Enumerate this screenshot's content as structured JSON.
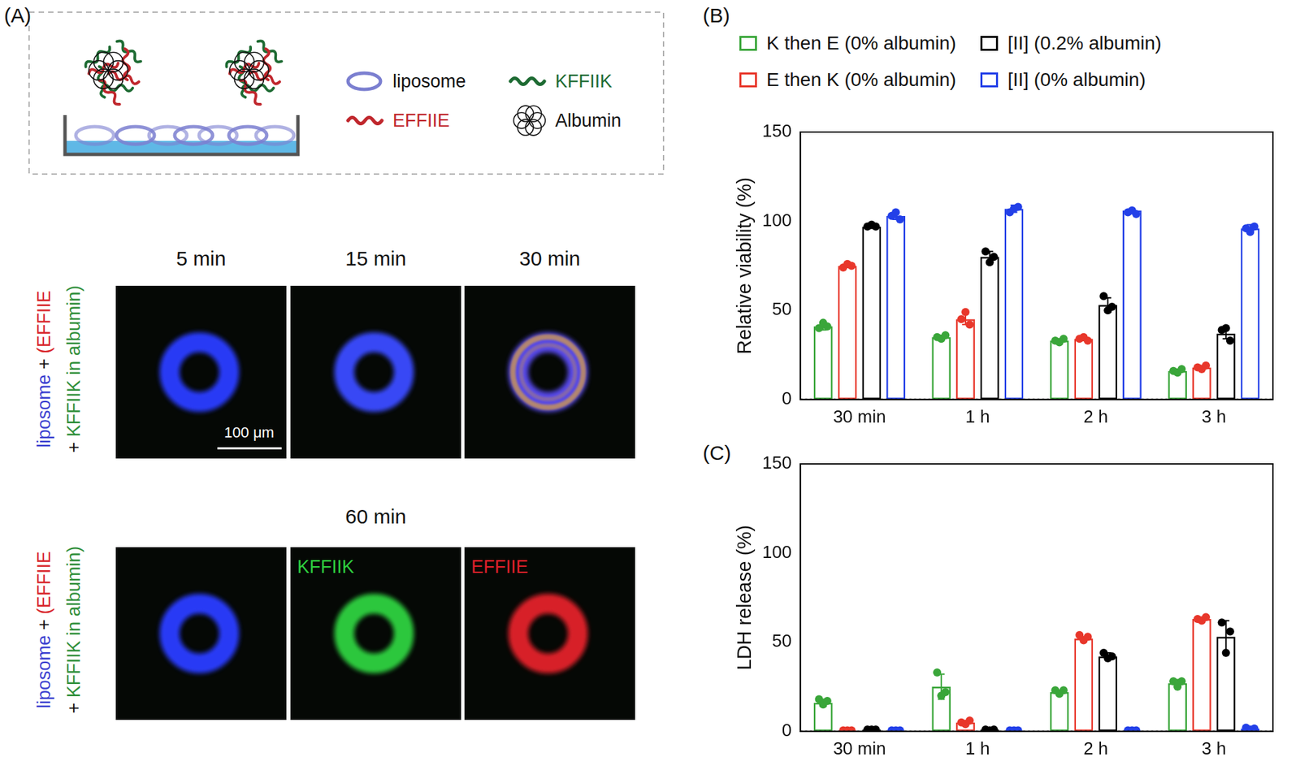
{
  "diagram": {
    "label": "(A)",
    "schematic": {
      "legend": [
        {
          "label": "liposome",
          "color": "#7b7fd0"
        },
        {
          "label": "KFFIIK",
          "color": "#1e6b33"
        },
        {
          "label": "EFFIIE",
          "color": "#c0272d"
        },
        {
          "label": "Albumin",
          "color": "#111111"
        }
      ]
    },
    "time_course": {
      "row_label": [
        [
          {
            "text": "liposome",
            "color": "#3a3fd0"
          },
          {
            "text": " + ",
            "color": "#111111"
          },
          {
            "text": "(EFFIIE",
            "color": "#d8262b"
          }
        ],
        [
          {
            "text": "+ ",
            "color": "#111111"
          },
          {
            "text": "KFFIIK in albumin)",
            "color": "#2f8f3a"
          }
        ]
      ],
      "images": [
        {
          "title": "5 min",
          "colors": [
            "#2b3cff"
          ]
        },
        {
          "title": "15 min",
          "colors": [
            "#3b4cff"
          ]
        },
        {
          "title": "30 min",
          "colors": [
            "#5a4cf0",
            "#d9a040"
          ]
        }
      ],
      "scale_bar": "100 μm"
    },
    "endpoint": {
      "row_label": [
        [
          {
            "text": "liposome",
            "color": "#3a3fd0"
          },
          {
            "text": " + ",
            "color": "#111111"
          },
          {
            "text": "(EFFIIE",
            "color": "#d8262b"
          }
        ],
        [
          {
            "text": "+ ",
            "color": "#111111"
          },
          {
            "text": "KFFIIK in albumin)",
            "color": "#2f8f3a"
          }
        ]
      ],
      "title": "60 min",
      "images": [
        {
          "colors": [
            "#2b3cff"
          ]
        },
        {
          "label": "KFFIIK",
          "colors": [
            "#2fcf3f"
          ]
        },
        {
          "label": "EFFIIE",
          "colors": [
            "#e0202a"
          ]
        }
      ]
    }
  },
  "chart_data": [
    {
      "label": "(B)",
      "type": "bar",
      "y_label": "Relative viability (%)",
      "categories": [
        "30 min",
        "1 h",
        "2 h",
        "3 h"
      ],
      "ylim": [
        0,
        150
      ],
      "yticks": [
        0,
        50,
        100,
        150
      ],
      "grid": false,
      "legend": "top",
      "series": [
        {
          "name": "K then E (0% albumin)",
          "color": "#3aa63a",
          "values": [
            41,
            35,
            33,
            16
          ],
          "errors": [
            2,
            1,
            1,
            1
          ],
          "points": [
            [
              40,
              43,
              41
            ],
            [
              35,
              34,
              36
            ],
            [
              33,
              32,
              34
            ],
            [
              16,
              15,
              17
            ]
          ]
        },
        {
          "name": "E then K (0% albumin)",
          "color": "#e8372b",
          "values": [
            75,
            45,
            34,
            18
          ],
          "errors": [
            1,
            3,
            1,
            1
          ],
          "points": [
            [
              74,
              76,
              75
            ],
            [
              45,
              49,
              42
            ],
            [
              34,
              35,
              33
            ],
            [
              18,
              17,
              19
            ]
          ]
        },
        {
          "name": "[II] (0.2% albumin)",
          "color": "#000000",
          "values": [
            97,
            80,
            53,
            37
          ],
          "errors": [
            1,
            3,
            4,
            3
          ],
          "points": [
            [
              97,
              98,
              97
            ],
            [
              83,
              77,
              80
            ],
            [
              58,
              50,
              52
            ],
            [
              39,
              40,
              33
            ]
          ]
        },
        {
          "name": "[II] (0% albumin)",
          "color": "#2340e8",
          "values": [
            103,
            107,
            106,
            96
          ],
          "errors": [
            2,
            2,
            1,
            2
          ],
          "points": [
            [
              103,
              105,
              101
            ],
            [
              105,
              107,
              108
            ],
            [
              105,
              106,
              104
            ],
            [
              96,
              94,
              97
            ]
          ]
        }
      ]
    },
    {
      "label": "(C)",
      "type": "bar",
      "y_label": "LDH release (%)",
      "categories": [
        "30 min",
        "1 h",
        "2 h",
        "3 h"
      ],
      "ylim": [
        0,
        150
      ],
      "yticks": [
        0,
        50,
        100,
        150
      ],
      "grid": false,
      "series": [
        {
          "name": "K then E (0% albumin)",
          "color": "#3aa63a",
          "values": [
            16,
            25,
            22,
            27
          ],
          "errors": [
            2,
            7,
            1,
            2
          ],
          "points": [
            [
              18,
              15,
              17
            ],
            [
              33,
              20,
              22
            ],
            [
              23,
              21,
              23
            ],
            [
              28,
              25,
              28
            ]
          ]
        },
        {
          "name": "E then K (0% albumin)",
          "color": "#e8372b",
          "values": [
            0.5,
            5,
            52,
            63
          ],
          "errors": [
            0,
            1,
            1,
            1
          ],
          "points": [
            [
              0.5,
              0.5,
              0.5
            ],
            [
              5,
              4,
              6
            ],
            [
              54,
              51,
              53
            ],
            [
              63,
              62,
              64
            ]
          ]
        },
        {
          "name": "[II] (0.2% albumin)",
          "color": "#000000",
          "values": [
            1,
            1,
            42,
            53
          ],
          "errors": [
            0,
            0,
            2,
            9
          ],
          "points": [
            [
              1,
              1,
              1
            ],
            [
              1,
              0.5,
              1
            ],
            [
              44,
              41,
              42
            ],
            [
              61,
              44,
              56
            ]
          ]
        },
        {
          "name": "[II] (0% albumin)",
          "color": "#2340e8",
          "values": [
            0.5,
            0.5,
            0.5,
            1.5
          ],
          "errors": [
            0,
            0,
            0,
            1
          ],
          "points": [
            [
              0.5,
              0.5,
              0.5
            ],
            [
              0.5,
              0.5,
              0.5
            ],
            [
              0.5,
              0.5,
              0.5
            ],
            [
              2,
              1,
              1.5
            ]
          ]
        }
      ]
    }
  ]
}
